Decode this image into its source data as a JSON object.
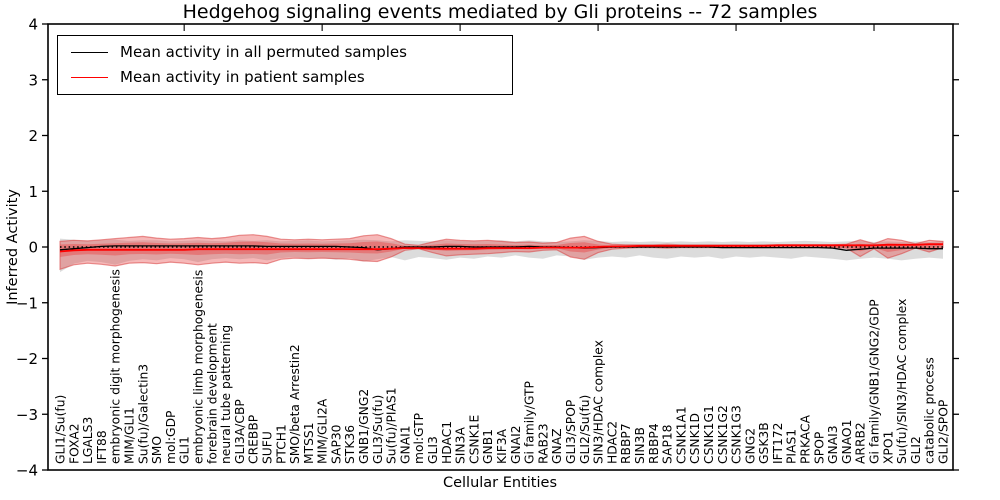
{
  "title": "Hedgehog signaling events mediated by Gli proteins -- 72 samples",
  "chart_data": {
    "type": "line",
    "title": "Hedgehog signaling events mediated by Gli proteins -- 72 samples",
    "xlabel": "Cellular Entities",
    "ylabel": "Inferred Activity",
    "ylim": [
      -4,
      4
    ],
    "yticks": [
      4,
      3,
      2,
      1,
      0,
      -1,
      -2,
      -3,
      -4
    ],
    "grid": false,
    "legend_position": "upper left",
    "zero_line": {
      "style": "dotted",
      "color": "#000000",
      "y": 0
    },
    "categories": [
      "GLI1/Su(fu)",
      "FOXA2",
      "LGALS3",
      "IFT88",
      "embryonic digit morphogenesis",
      "MIM/GLI1",
      "Su(fu)/Galectin3",
      "SMO",
      "mol:GDP",
      "GLI1",
      "embryonic limb morphogenesis",
      "forebrain development",
      "neural tube patterning",
      "GLI3A/CBP",
      "CREBBP",
      "SUFU",
      "PTCH1",
      "SMO/beta Arrestin2",
      "MTSS1",
      "MIM/GLI2A",
      "SAP30",
      "STK36",
      "GNB1/GNG2",
      "GLI3/Su(fu)",
      "Su(fu)/PIAS1",
      "GNAI1",
      "mol:GTP",
      "GLI3",
      "HDAC1",
      "SIN3A",
      "CSNK1E",
      "GNB1",
      "KIF3A",
      "GNAI2",
      "Gi family/GTP",
      "RAB23",
      "GNAZ",
      "GLI3/SPOP",
      "GLI2/Su(fu)",
      "SIN3/HDAC complex",
      "HDAC2",
      "RBBP7",
      "SIN3B",
      "RBBP4",
      "SAP18",
      "CSNK1A1",
      "CSNK1D",
      "CSNK1G1",
      "CSNK1G2",
      "CSNK1G3",
      "GNG2",
      "GSK3B",
      "IFT172",
      "PIAS1",
      "PRKACA",
      "SPOP",
      "GNAI3",
      "GNAO1",
      "ARRB2",
      "Gi family/GNB1/GNG2/GDP",
      "XPO1",
      "Su(fu)/SIN3/HDAC complex",
      "GLI2",
      "catabolic process",
      "GLI2/SPOP"
    ],
    "series": [
      {
        "name": "Mean activity in all permuted samples",
        "color": "#000000",
        "values": [
          -0.05,
          -0.03,
          -0.01,
          0.01,
          0.02,
          0.02,
          0.02,
          0.02,
          0.02,
          0.02,
          0.02,
          0.02,
          0.02,
          0.02,
          0.02,
          0.01,
          0.01,
          0.01,
          0.01,
          0.01,
          0.01,
          0.0,
          -0.01,
          -0.05,
          -0.03,
          0.0,
          0.0,
          0.0,
          0.01,
          0.01,
          0.0,
          0.0,
          0.0,
          0.0,
          0.01,
          0.0,
          0.0,
          -0.01,
          -0.02,
          -0.01,
          0.0,
          0.0,
          0.0,
          0.0,
          0.0,
          0.0,
          0.0,
          0.0,
          -0.01,
          -0.01,
          -0.01,
          -0.01,
          -0.01,
          -0.01,
          -0.01,
          -0.01,
          -0.02,
          -0.06,
          -0.04,
          -0.02,
          -0.02,
          -0.02,
          -0.02,
          -0.03,
          -0.03
        ]
      },
      {
        "name": "Mean activity in patient samples",
        "color": "#ff0000",
        "values": [
          -0.08,
          -0.06,
          -0.05,
          -0.05,
          -0.05,
          -0.05,
          -0.05,
          -0.05,
          -0.05,
          -0.05,
          -0.04,
          -0.04,
          -0.04,
          -0.04,
          -0.04,
          -0.04,
          -0.04,
          -0.04,
          -0.04,
          -0.04,
          -0.04,
          -0.04,
          -0.04,
          -0.04,
          -0.03,
          -0.02,
          -0.02,
          -0.03,
          -0.03,
          -0.03,
          -0.03,
          -0.02,
          -0.02,
          -0.02,
          -0.02,
          -0.01,
          -0.01,
          -0.01,
          -0.01,
          0.0,
          0.01,
          0.01,
          0.02,
          0.02,
          0.02,
          0.02,
          0.02,
          0.02,
          0.02,
          0.02,
          0.02,
          0.02,
          0.03,
          0.03,
          0.03,
          0.03,
          0.03,
          0.03,
          0.03,
          0.03,
          0.04,
          0.04,
          0.04,
          0.05,
          0.05
        ]
      }
    ],
    "bands": [
      {
        "name": "permuted samples activity range",
        "color": "#bfbfbf",
        "opacity": 0.55,
        "upper": [
          0.15,
          0.13,
          0.11,
          0.12,
          0.13,
          0.11,
          0.12,
          0.12,
          0.1,
          0.11,
          0.12,
          0.11,
          0.1,
          0.12,
          0.11,
          0.12,
          0.1,
          0.11,
          0.12,
          0.1,
          0.11,
          0.12,
          0.13,
          0.12,
          0.1,
          0.12,
          0.11,
          0.1,
          0.12,
          0.11,
          0.1,
          0.11,
          0.12,
          0.1,
          0.12,
          0.1,
          0.09,
          0.1,
          0.12,
          0.11,
          0.09,
          0.1,
          0.09,
          0.1,
          0.09,
          0.1,
          0.09,
          0.1,
          0.09,
          0.1,
          0.09,
          0.1,
          0.09,
          0.1,
          0.11,
          0.1,
          0.09,
          0.1,
          0.11,
          0.09,
          0.1,
          0.09,
          0.1,
          0.09,
          0.11
        ],
        "lower": [
          -0.45,
          -0.3,
          -0.25,
          -0.27,
          -0.32,
          -0.25,
          -0.22,
          -0.24,
          -0.2,
          -0.22,
          -0.27,
          -0.22,
          -0.2,
          -0.22,
          -0.2,
          -0.24,
          -0.2,
          -0.18,
          -0.21,
          -0.19,
          -0.23,
          -0.2,
          -0.26,
          -0.22,
          -0.18,
          -0.24,
          -0.18,
          -0.2,
          -0.23,
          -0.19,
          -0.21,
          -0.17,
          -0.19,
          -0.15,
          -0.19,
          -0.21,
          -0.15,
          -0.17,
          -0.23,
          -0.19,
          -0.17,
          -0.19,
          -0.15,
          -0.19,
          -0.21,
          -0.17,
          -0.19,
          -0.17,
          -0.21,
          -0.17,
          -0.19,
          -0.17,
          -0.19,
          -0.21,
          -0.17,
          -0.19,
          -0.21,
          -0.24,
          -0.21,
          -0.19,
          -0.21,
          -0.24,
          -0.21,
          -0.19,
          -0.21
        ]
      },
      {
        "name": "patient samples activity range",
        "color": "#e84545",
        "opacity": 0.38,
        "upper": [
          0.1,
          0.12,
          0.11,
          0.13,
          0.15,
          0.17,
          0.19,
          0.16,
          0.14,
          0.15,
          0.17,
          0.15,
          0.17,
          0.21,
          0.22,
          0.19,
          0.14,
          0.13,
          0.14,
          0.13,
          0.14,
          0.15,
          0.2,
          0.22,
          0.15,
          0.05,
          0.03,
          0.09,
          0.14,
          0.12,
          0.11,
          0.12,
          0.1,
          0.08,
          0.09,
          0.07,
          0.08,
          0.16,
          0.19,
          0.1,
          0.05,
          0.04,
          0.04,
          0.04,
          0.05,
          0.04,
          0.04,
          0.04,
          0.04,
          0.04,
          0.04,
          0.04,
          0.04,
          0.04,
          0.04,
          0.04,
          0.04,
          0.05,
          0.13,
          0.06,
          0.15,
          0.12,
          0.06,
          0.12,
          0.1
        ],
        "lower": [
          -0.4,
          -0.32,
          -0.29,
          -0.31,
          -0.34,
          -0.29,
          -0.28,
          -0.3,
          -0.27,
          -0.29,
          -0.32,
          -0.29,
          -0.27,
          -0.29,
          -0.28,
          -0.3,
          -0.22,
          -0.2,
          -0.21,
          -0.2,
          -0.21,
          -0.22,
          -0.25,
          -0.26,
          -0.18,
          -0.06,
          -0.03,
          -0.1,
          -0.16,
          -0.14,
          -0.13,
          -0.12,
          -0.1,
          -0.08,
          -0.09,
          -0.06,
          -0.05,
          -0.18,
          -0.22,
          -0.1,
          -0.04,
          -0.02,
          -0.01,
          -0.01,
          -0.02,
          -0.01,
          -0.01,
          -0.01,
          -0.01,
          -0.01,
          -0.01,
          -0.01,
          -0.01,
          -0.01,
          -0.01,
          -0.01,
          -0.01,
          -0.02,
          -0.17,
          -0.03,
          -0.2,
          -0.12,
          -0.02,
          -0.09,
          -0.01
        ]
      }
    ]
  }
}
